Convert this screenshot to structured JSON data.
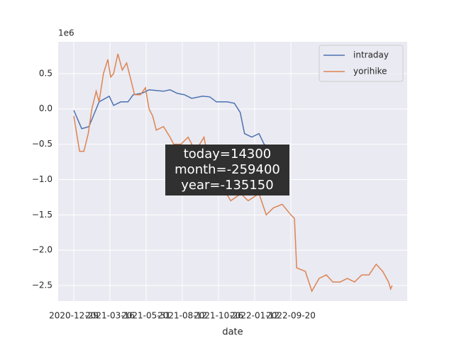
{
  "chart_data": {
    "type": "line",
    "offset_label": "1e6",
    "xlabel": "date",
    "xlim": [
      -21.6,
      460.8
    ],
    "xticks": [
      {
        "value": 0,
        "label": "2020-12-29"
      },
      {
        "value": 50,
        "label": "2021-03-16"
      },
      {
        "value": 100,
        "label": "2021-05-31"
      },
      {
        "value": 150,
        "label": "2021-08-12"
      },
      {
        "value": 200,
        "label": "2021-10-26"
      },
      {
        "value": 250,
        "label": "2022-01-12"
      },
      {
        "value": 300,
        "label": "2022-09-20"
      }
    ],
    "ylim": [
      -2.72,
      0.95
    ],
    "yticks": [
      0.5,
      {
        "value": 0,
        "label": "0.0"
      },
      {
        "value": -0.5,
        "label": "−0.5"
      },
      {
        "value": -1,
        "label": "−1.0"
      },
      {
        "value": -1.5,
        "label": "−1.5"
      },
      {
        "value": -2,
        "label": "−2.0"
      },
      {
        "value": -2.5,
        "label": "−2.5"
      }
    ],
    "grid": true,
    "legend": "upper right",
    "series": [
      {
        "name": "intraday",
        "color": "#4c72b0",
        "x": [
          0,
          11,
          21,
          35,
          49,
          55,
          65,
          75,
          82,
          94,
          104,
          124,
          133,
          143,
          153,
          163,
          178,
          188,
          197,
          212,
          222,
          230,
          236,
          246,
          256,
          263,
          269
        ],
        "values": [
          -0.02,
          -0.28,
          -0.25,
          0.1,
          0.18,
          0.05,
          0.1,
          0.1,
          0.2,
          0.22,
          0.27,
          0.25,
          0.27,
          0.22,
          0.2,
          0.15,
          0.18,
          0.17,
          0.1,
          0.1,
          0.08,
          -0.05,
          -0.35,
          -0.4,
          -0.35,
          -0.5,
          -0.55
        ]
      },
      {
        "name": "yorihike",
        "color": "#dd8452",
        "x": [
          0,
          8,
          14,
          20,
          25,
          31,
          35,
          41,
          47,
          51,
          55,
          61,
          67,
          73,
          78,
          84,
          92,
          99,
          104,
          109,
          114,
          124,
          133,
          138,
          148,
          158,
          168,
          180,
          187,
          217,
          231,
          241,
          256,
          266,
          276,
          288,
          300,
          305,
          308,
          320,
          329,
          339,
          349,
          358,
          368,
          378,
          388,
          398,
          408,
          418,
          427,
          435,
          438,
          440
        ],
        "values": [
          -0.1,
          -0.6,
          -0.6,
          -0.35,
          0,
          0.25,
          0.1,
          0.5,
          0.7,
          0.45,
          0.5,
          0.78,
          0.55,
          0.65,
          0.45,
          0.2,
          0.2,
          0.3,
          0,
          -0.1,
          -0.3,
          -0.25,
          -0.4,
          -0.5,
          -0.5,
          -0.4,
          -0.6,
          -0.4,
          -0.8,
          -1.3,
          -1.2,
          -1.3,
          -1.2,
          -1.5,
          -1.4,
          -1.35,
          -1.5,
          -1.55,
          -2.25,
          -2.3,
          -2.58,
          -2.4,
          -2.35,
          -2.45,
          -2.45,
          -2.4,
          -2.45,
          -2.35,
          -2.35,
          -2.2,
          -2.3,
          -2.45,
          -2.55,
          -2.5
        ]
      }
    ],
    "annotation": [
      "today=14300",
      "month=-259400",
      "year=-135150"
    ]
  }
}
